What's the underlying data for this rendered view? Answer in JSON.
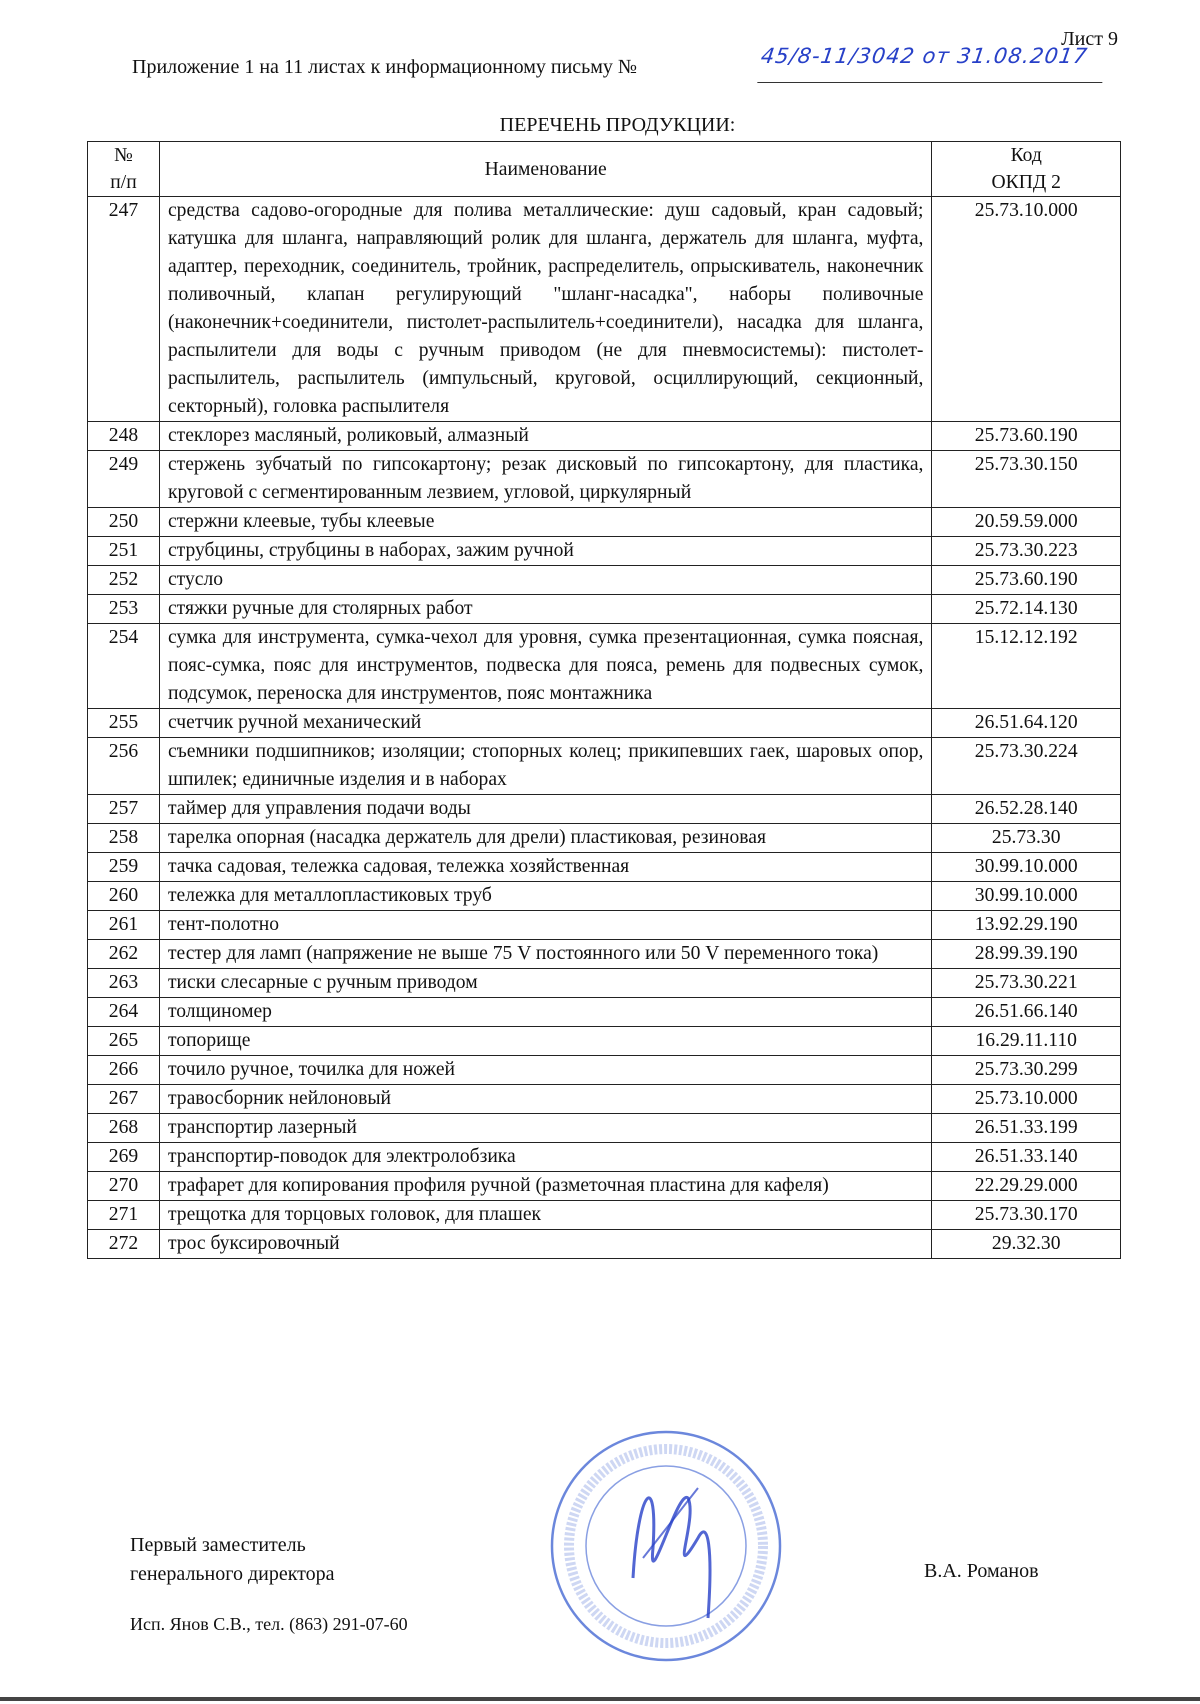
{
  "sheet_label": "Лист 9",
  "header": {
    "text": "Приложение 1 на 11 листах к информационному письму №",
    "handwritten_number": "45/8-11/3042 от 31.08.2017"
  },
  "title": "ПЕРЕЧЕНЬ ПРОДУКЦИИ:",
  "table": {
    "columns": [
      "№ п/п",
      "Наименование",
      "Код ОКПД 2"
    ],
    "col_num_l1": "№",
    "col_num_l2": "п/п",
    "col_code_l1": "Код",
    "col_code_l2": "ОКПД 2",
    "rows": [
      {
        "n": "247",
        "name": "средства садово-огородные для полива металлические: душ садовый, кран садовый; катушка для шланга, направляющий ролик для шланга, держатель для шланга, муфта, адаптер, переходник, соединитель, тройник, распределитель, опрыскиватель, наконечник поливочный, клапан регулирующий \"шланг-насадка\", наборы поливочные (наконечник+соединители, пистолет-распылитель+соединители), насадка для шланга, распылители для воды с ручным приводом (не для пневмосистемы): пистолет-распылитель, распылитель (импульсный, круговой, осциллирующий, секционный, секторный), головка распылителя",
        "code": "25.73.10.000"
      },
      {
        "n": "248",
        "name": "стеклорез масляный, роликовый, алмазный",
        "code": "25.73.60.190"
      },
      {
        "n": "249",
        "name": "стержень зубчатый по гипсокартону; резак дисковый по гипсокартону, для пластика, круговой с сегментированным лезвием, угловой, циркулярный",
        "code": "25.73.30.150"
      },
      {
        "n": "250",
        "name": "стержни клеевые, тубы клеевые",
        "code": "20.59.59.000"
      },
      {
        "n": "251",
        "name": "струбцины, струбцины в наборах, зажим ручной",
        "code": "25.73.30.223"
      },
      {
        "n": "252",
        "name": "стусло",
        "code": "25.73.60.190"
      },
      {
        "n": "253",
        "name": "стяжки ручные для столярных работ",
        "code": "25.72.14.130"
      },
      {
        "n": "254",
        "name": "сумка для инструмента, сумка-чехол для уровня, сумка презентационная, сумка поясная, пояс-сумка, пояс для инструментов, подвеска для пояса, ремень для подвесных сумок, подсумок, переноска для инструментов, пояс монтажника",
        "code": "15.12.12.192"
      },
      {
        "n": "255",
        "name": "счетчик ручной механический",
        "code": "26.51.64.120"
      },
      {
        "n": "256",
        "name": "съемники подшипников; изоляции; стопорных колец; прикипевших гаек, шаровых опор, шпилек; единичные изделия и в наборах",
        "code": "25.73.30.224"
      },
      {
        "n": "257",
        "name": "таймер для управления подачи воды",
        "code": "26.52.28.140"
      },
      {
        "n": "258",
        "name": "тарелка опорная (насадка держатель для дрели) пластиковая, резиновая",
        "code": "25.73.30"
      },
      {
        "n": "259",
        "name": "тачка садовая, тележка садовая, тележка хозяйственная",
        "code": "30.99.10.000"
      },
      {
        "n": "260",
        "name": "тележка для металлопластиковых труб",
        "code": "30.99.10.000"
      },
      {
        "n": "261",
        "name": "тент-полотно",
        "code": "13.92.29.190"
      },
      {
        "n": "262",
        "name": "тестер для ламп (напряжение не выше 75 V постоянного или 50 V переменного тока)",
        "code": "28.99.39.190"
      },
      {
        "n": "263",
        "name": "тиски слесарные с ручным приводом",
        "code": "25.73.30.221"
      },
      {
        "n": "264",
        "name": "толщиномер",
        "code": "26.51.66.140"
      },
      {
        "n": "265",
        "name": "топорище",
        "code": "16.29.11.110"
      },
      {
        "n": "266",
        "name": "точило ручное, точилка для ножей",
        "code": "25.73.30.299"
      },
      {
        "n": "267",
        "name": "травосборник нейлоновый",
        "code": "25.73.10.000"
      },
      {
        "n": "268",
        "name": "транспортир лазерный",
        "code": "26.51.33.199"
      },
      {
        "n": "269",
        "name": "транспортир-поводок для электролобзика",
        "code": "26.51.33.140"
      },
      {
        "n": "270",
        "name": "трафарет для копирования профиля ручной (разметочная пластина для кафеля)",
        "code": "22.29.29.000"
      },
      {
        "n": "271",
        "name": "трещотка для торцовых головок, для плашек",
        "code": "25.73.30.170"
      },
      {
        "n": "272",
        "name": "трос буксировочный",
        "code": "29.32.30"
      }
    ]
  },
  "signature": {
    "position_l1": "Первый заместитель",
    "position_l2": "генерального директора",
    "name": "В.А. Романов"
  },
  "executor": "Исп. Янов С.В., тел. (863) 291-07-60",
  "stamp_text": "ФБУ «Ростовский ЦСМ»",
  "colors": {
    "stamp": "#3a5fd0",
    "handwriting": "#2740c8"
  }
}
